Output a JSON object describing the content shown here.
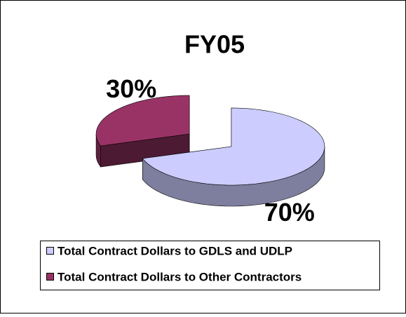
{
  "chart_data": {
    "type": "pie3d",
    "title": "FY05",
    "categories": [
      "Total Contract Dollars to GDLS and UDLP",
      "Total Contract Dollars to Other Contractors"
    ],
    "values": [
      70,
      30
    ],
    "value_labels": [
      "70%",
      "30%"
    ],
    "colors": [
      "#ccccff",
      "#993366"
    ],
    "legend": "bottom"
  }
}
